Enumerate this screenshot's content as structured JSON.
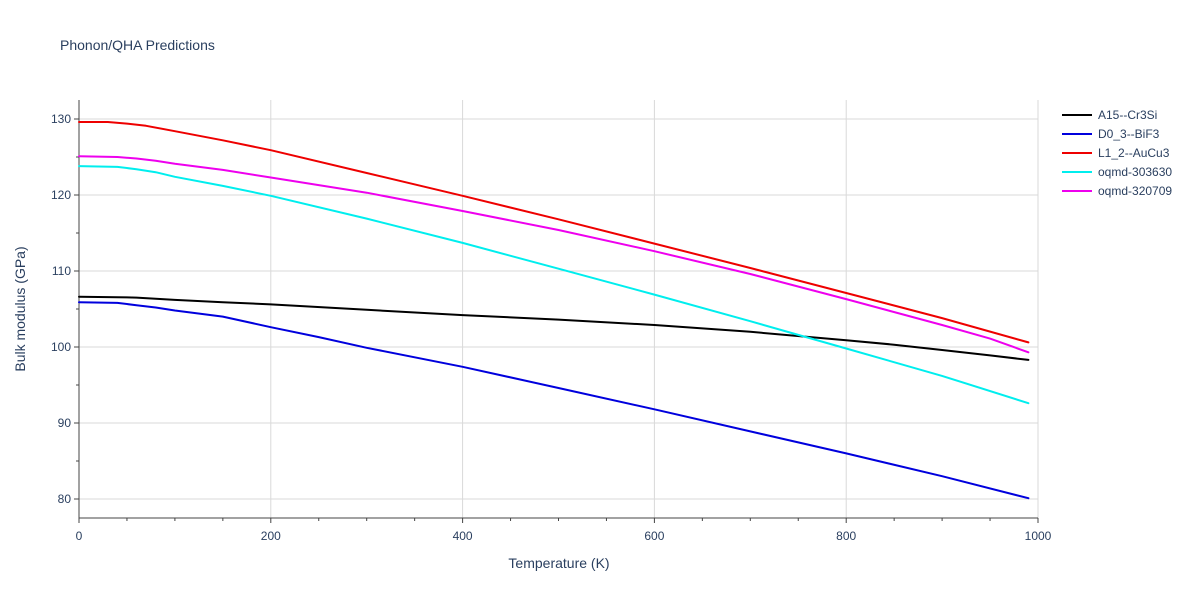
{
  "chart_data": {
    "type": "line",
    "title": "Phonon/QHA Predictions",
    "xlabel": "Temperature (K)",
    "ylabel": "Bulk modulus (GPa)",
    "xlim": [
      0,
      1000
    ],
    "ylim": [
      77.5,
      132.5
    ],
    "xticks": [
      0,
      200,
      400,
      600,
      800,
      1000
    ],
    "yticks": [
      80,
      90,
      100,
      110,
      120,
      130
    ],
    "grid": true,
    "legend_position": "top-right",
    "series": [
      {
        "name": "A15--Cr3Si",
        "color": "#000000",
        "x": [
          0,
          40,
          60,
          100,
          150,
          200,
          300,
          400,
          500,
          600,
          700,
          800,
          850,
          900,
          950,
          990
        ],
        "y": [
          106.6,
          106.55,
          106.5,
          106.2,
          105.9,
          105.6,
          104.9,
          104.2,
          103.6,
          102.9,
          102.0,
          100.9,
          100.3,
          99.6,
          98.9,
          98.3
        ]
      },
      {
        "name": "D0_3--BiF3",
        "color": "#0000dd",
        "x": [
          0,
          40,
          60,
          80,
          100,
          150,
          200,
          250,
          300,
          400,
          500,
          600,
          700,
          800,
          900,
          990
        ],
        "y": [
          105.9,
          105.8,
          105.5,
          105.2,
          104.8,
          104.0,
          102.6,
          101.3,
          99.9,
          97.4,
          94.6,
          91.8,
          88.9,
          86.0,
          83.0,
          80.1
        ]
      },
      {
        "name": "L1_2--AuCu3",
        "color": "#ee0000",
        "x": [
          0,
          30,
          50,
          70,
          100,
          150,
          200,
          300,
          400,
          500,
          600,
          700,
          800,
          900,
          990
        ],
        "y": [
          129.6,
          129.6,
          129.4,
          129.1,
          128.4,
          127.2,
          125.9,
          122.9,
          119.9,
          116.8,
          113.6,
          110.4,
          107.1,
          103.8,
          100.6
        ]
      },
      {
        "name": "oqmd-303630",
        "color": "#00eeee",
        "x": [
          0,
          40,
          60,
          80,
          100,
          150,
          200,
          300,
          400,
          500,
          600,
          700,
          800,
          900,
          990
        ],
        "y": [
          123.8,
          123.7,
          123.4,
          123.0,
          122.4,
          121.2,
          119.9,
          116.9,
          113.7,
          110.3,
          106.9,
          103.4,
          99.8,
          96.2,
          92.6
        ]
      },
      {
        "name": "oqmd-320709",
        "color": "#ee00ee",
        "x": [
          0,
          40,
          60,
          80,
          100,
          150,
          200,
          300,
          400,
          500,
          600,
          700,
          800,
          900,
          950,
          990
        ],
        "y": [
          125.1,
          125.0,
          124.8,
          124.5,
          124.1,
          123.3,
          122.3,
          120.3,
          117.9,
          115.4,
          112.6,
          109.6,
          106.3,
          102.9,
          101.1,
          99.3
        ]
      }
    ]
  }
}
